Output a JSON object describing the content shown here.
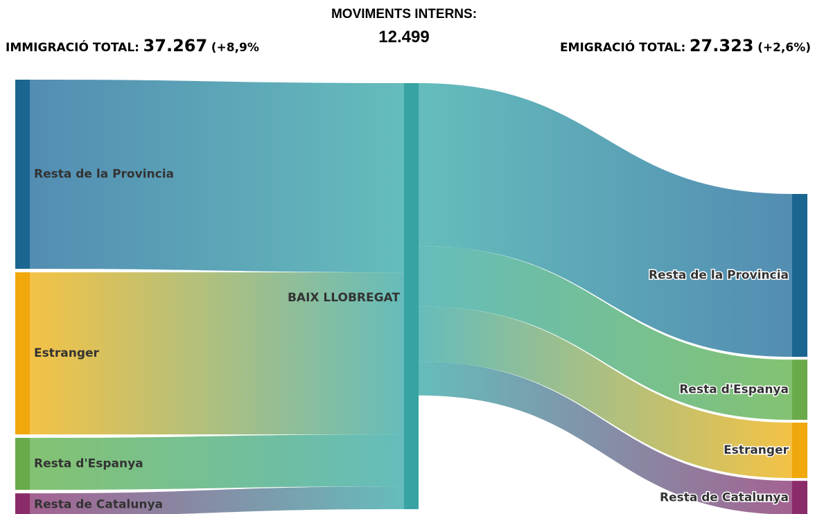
{
  "chart_data": {
    "type": "sankey",
    "header": {
      "left": {
        "label": "IMMIGRACIÓ TOTAL:",
        "total": "37.267",
        "change": "(+8,9%"
      },
      "center": {
        "label": "MOVIMENTS INTERNS:",
        "total": "12.499"
      },
      "right": {
        "label": "EMIGRACIÓ TOTAL:",
        "total": "27.323",
        "change": "(+2,6%)"
      }
    },
    "node": {
      "name": "BAIX LLOBREGAT",
      "color": "#37a3a3",
      "link_color": "#5db9b8"
    },
    "inflows": [
      {
        "name": "Resta de la Provincia",
        "color": "#1b6591",
        "link_color": "#4a87ae",
        "value": 16550
      },
      {
        "name": "Estranger",
        "color": "#f0a80c",
        "link_color": "#f3bf3c",
        "value": 14180
      },
      {
        "name": "Resta d'Espanya",
        "color": "#6aaa4a",
        "link_color": "#7dbf6a",
        "value": 4550
      },
      {
        "name": "Resta de Catalunya",
        "color": "#8b2c6a",
        "link_color": "#9e5a8c",
        "value": 1990
      }
    ],
    "outflows": [
      {
        "name": "Resta de la Provincia",
        "color": "#1b6591",
        "link_color": "#4a87ae",
        "value": 14250
      },
      {
        "name": "Resta d'Espanya",
        "color": "#6aaa4a",
        "link_color": "#7dbf6a",
        "value": 5270
      },
      {
        "name": "Estranger",
        "color": "#f0a80c",
        "link_color": "#f3bf3c",
        "value": 4850
      },
      {
        "name": "Resta de Catalunya",
        "color": "#8b2c6a",
        "link_color": "#9e5a8c",
        "value": 2950
      }
    ]
  }
}
